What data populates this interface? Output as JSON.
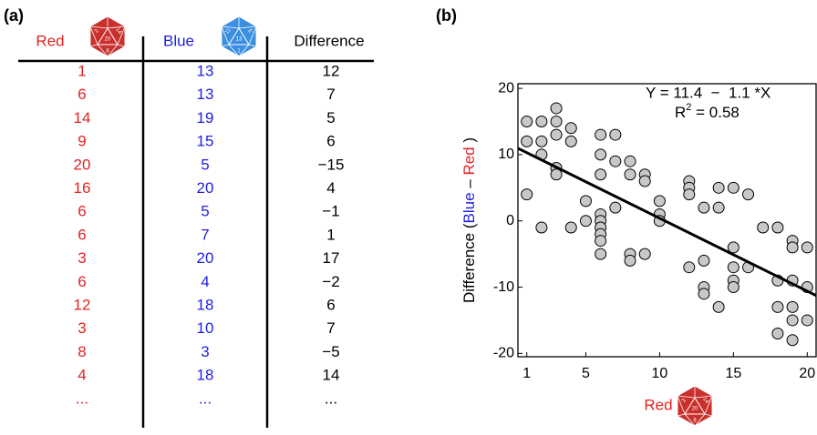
{
  "panel_labels": [
    "(a)",
    "(b)"
  ],
  "dice": {
    "red": [
      "2",
      "20",
      "14",
      "8"
    ],
    "blue": [
      "11",
      "13",
      "5",
      "1"
    ]
  },
  "table": {
    "header": [
      "Red",
      "Blue",
      "Difference"
    ],
    "rows": [
      [
        "1",
        "13",
        "12"
      ],
      [
        "6",
        "13",
        "7"
      ],
      [
        "14",
        "19",
        "5"
      ],
      [
        "9",
        "15",
        "6"
      ],
      [
        "20",
        "5",
        "−15"
      ],
      [
        "16",
        "20",
        "4"
      ],
      [
        "6",
        "5",
        "−1"
      ],
      [
        "6",
        "7",
        "1"
      ],
      [
        "3",
        "20",
        "17"
      ],
      [
        "6",
        "4",
        "−2"
      ],
      [
        "12",
        "18",
        "6"
      ],
      [
        "3",
        "10",
        "7"
      ],
      [
        "8",
        "3",
        "−5"
      ],
      [
        "4",
        "18",
        "14"
      ],
      [
        "...",
        "...",
        "..."
      ]
    ]
  },
  "chart_data": {
    "type": "scatter",
    "x_label": "Red",
    "y_label_parts": [
      "Difference (",
      "Blue",
      " – ",
      "Red",
      " )"
    ],
    "annotation": "Y = 11.4  −  1.1 *X",
    "r2": {
      "base": "R",
      "sup": "2",
      "rest": " = 0.58"
    },
    "fit": {
      "intercept": 11.4,
      "slope": -1.1,
      "color": "#000000"
    },
    "xlim": [
      0.4,
      20.6
    ],
    "ylim": [
      -20.5,
      20.7
    ],
    "xticks": [
      1,
      5,
      10,
      15,
      20
    ],
    "yticks": [
      -20,
      -10,
      0,
      10,
      20
    ],
    "series": [
      {
        "color": "#c8c8c8",
        "x": [
          1,
          1,
          1,
          2,
          2,
          2,
          2,
          3,
          3,
          3,
          3,
          3,
          4,
          4,
          4,
          5,
          5,
          6,
          6,
          6,
          6,
          6,
          6,
          6,
          6,
          6,
          7,
          7,
          7,
          8,
          8,
          8,
          8,
          9,
          9,
          9,
          10,
          10,
          10,
          12,
          12,
          12,
          12,
          13,
          13,
          13,
          13,
          14,
          14,
          14,
          15,
          15,
          15,
          15,
          15,
          16,
          16,
          17,
          18,
          18,
          18,
          18,
          19,
          19,
          19,
          19,
          19,
          19,
          20,
          20,
          20
        ],
        "values": [
          15,
          12,
          4,
          15,
          12,
          10,
          -1,
          17,
          15,
          13,
          8,
          7,
          14,
          12,
          -1,
          3,
          0,
          13,
          10,
          7,
          1,
          0,
          -1,
          -2,
          -3,
          -5,
          13,
          9,
          2,
          9,
          7,
          -5,
          -6,
          7,
          6,
          -5,
          3,
          1,
          0,
          6,
          5,
          4,
          -7,
          2,
          -6,
          -10,
          -11,
          5,
          2,
          -13,
          5,
          -4,
          -7,
          -9,
          -10,
          4,
          -7,
          -1,
          -1,
          -9,
          -13,
          -17,
          -3,
          -4,
          -9,
          -13,
          -15,
          -18,
          -4,
          -10,
          -15
        ]
      }
    ]
  }
}
